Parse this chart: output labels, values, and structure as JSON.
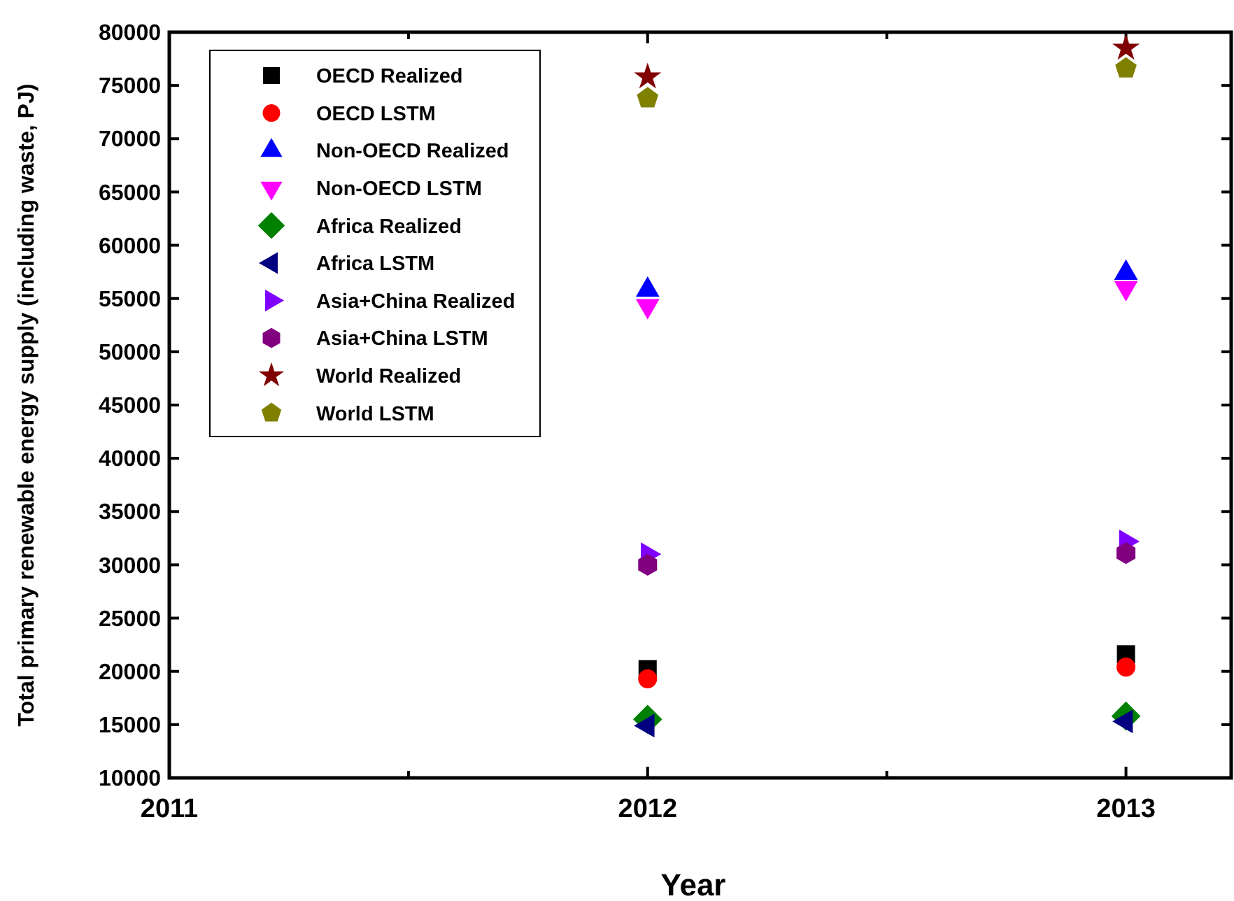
{
  "chart_data": {
    "type": "scatter",
    "xlabel": "Year",
    "ylabel": "Total primary renewable energy supply (including waste, PJ)",
    "xlim": [
      2011,
      2013.22
    ],
    "xticks": [
      2011,
      {
        "value": 2011.5,
        "label": null
      },
      2012,
      {
        "value": 2012.5,
        "label": null
      },
      2013
    ],
    "ylim": [
      10000,
      80000
    ],
    "yticks": [
      10000,
      15000,
      20000,
      25000,
      30000,
      35000,
      40000,
      45000,
      50000,
      55000,
      60000,
      65000,
      70000,
      75000,
      80000
    ],
    "grid": false,
    "legend": "top left",
    "x": [
      2012,
      2013
    ],
    "series": [
      {
        "name": "OECD Realized",
        "color": "#000000",
        "values": [
          20200,
          21600
        ]
      },
      {
        "name": "OECD LSTM",
        "color": "#ff0000",
        "values": [
          19300,
          20400
        ]
      },
      {
        "name": "Non-OECD Realized",
        "color": "#0000ff",
        "values": [
          55800,
          57400
        ]
      },
      {
        "name": "Non-OECD LSTM",
        "color": "#ff00ff",
        "values": [
          54300,
          56000
        ]
      },
      {
        "name": "Africa Realized",
        "color": "#008000",
        "values": [
          15500,
          15800
        ]
      },
      {
        "name": "Africa LSTM",
        "color": "#000080",
        "values": [
          14900,
          15300
        ]
      },
      {
        "name": "Asia+China Realized",
        "color": "#8000ff",
        "values": [
          31000,
          32200
        ]
      },
      {
        "name": "Asia+China LSTM",
        "color": "#800080",
        "values": [
          30000,
          31100
        ]
      },
      {
        "name": "World Realized",
        "color": "#800000",
        "values": [
          75800,
          78500
        ]
      },
      {
        "name": "World LSTM",
        "color": "#808000",
        "values": [
          73800,
          76600
        ]
      }
    ]
  }
}
